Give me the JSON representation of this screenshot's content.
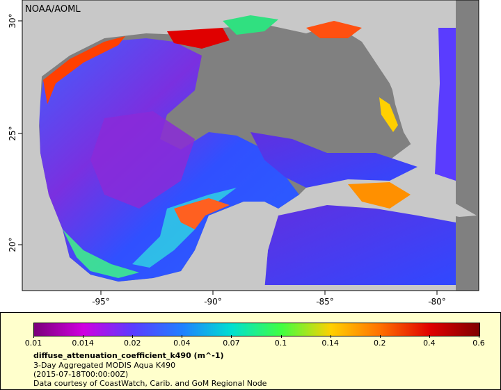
{
  "credit": "NOAA/AOML",
  "axes": {
    "lon_ticks": [
      "-95°",
      "-90°",
      "-85°",
      "-80°"
    ],
    "lat_ticks": [
      "30°",
      "25°",
      "20°"
    ]
  },
  "legend": {
    "labels": [
      "0.01",
      "0.014",
      "0.02",
      "0.04",
      "0.07",
      "0.1",
      "0.14",
      "0.2",
      "0.4",
      "0.6"
    ],
    "colors": [
      "#7a007a",
      "#d000e0",
      "#5a3cff",
      "#2080ff",
      "#00e0d0",
      "#40ff40",
      "#ffd000",
      "#ff7000",
      "#e00000",
      "#800000"
    ],
    "variable": "diffuse_attenuation_coefficient_k490 (m^-1)",
    "line1": "3-Day Aggregated MODIS Aqua K490",
    "line2": "(2015-07-18T00:00:00Z)",
    "line3": "Data courtesy of CoastWatch, Carib. and GoM Regional Node"
  }
}
